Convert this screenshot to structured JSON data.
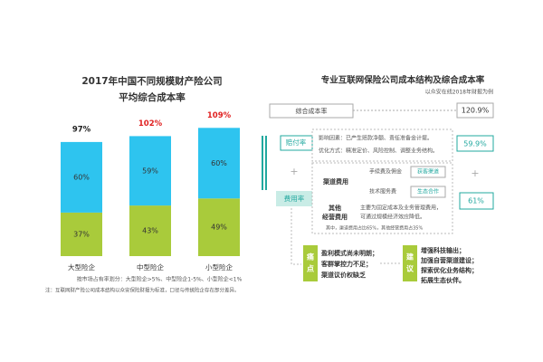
{
  "chart_data": {
    "type": "stacked_bar",
    "title": "2017年中国不同规模财产险公司",
    "subtitle": "平均综合成本率",
    "categories": [
      "大型险企",
      "中型险企",
      "小型险企"
    ],
    "series": [
      {
        "color": "#a9cb3b",
        "values": [
          37,
          43,
          49
        ],
        "value_labels": [
          "37%",
          "43%",
          "49%"
        ]
      },
      {
        "color": "#2ec4ef",
        "values": [
          60,
          59,
          60
        ],
        "value_labels": [
          "60%",
          "59%",
          "60%"
        ]
      }
    ],
    "totals": [
      97,
      102,
      109
    ],
    "total_labels": [
      "97%",
      "102%",
      "109%"
    ],
    "total_colors": [
      "#222222",
      "#e02020",
      "#e02020"
    ],
    "note": "按市场占有率划分：大型险企>5%、中型险企1-5%、小型险企<1%",
    "footnote": "注：互联网财产险公司成本结构以众安保险财报为标准，口径与传统险企存在部分差异。"
  },
  "diagram": {
    "title": "专业互联网保险公司成本结构及综合成本率",
    "subtitle": "以众安在线2018年财报为例",
    "combined": {
      "label": "综合成本率",
      "value": "120.9%"
    },
    "claims": {
      "label": "赔付率",
      "value": "59.9%",
      "factors": "影响因素：已产生赔款净额、责任准备金计提。",
      "methods": "优化方式：精准定价、风险控制、调整业务结构。"
    },
    "plus": "+",
    "expense": {
      "label": "费用率",
      "value": "61%",
      "channel": "渠道费用",
      "fee": "手续费及佣金",
      "fee_tag": "获客渠道",
      "tech": "技术服务费",
      "tech_tag": "生态合作",
      "other": [
        "其他",
        "经营费用"
      ],
      "other_desc": [
        "主要为固定成本及业务管理费用，",
        "可通过规模经济效应降低。"
      ],
      "share": "其中，渠道费用占比65%，其他经营费用占35%"
    },
    "pain": {
      "label": [
        "痛",
        "点"
      ],
      "items": [
        "盈利模式尚未明朗；",
        "客群掌控力不足；",
        "渠道议价权缺乏"
      ]
    },
    "advice": {
      "label": [
        "建",
        "议"
      ],
      "items": [
        "增强科技输出；",
        "加强自营渠道建设；",
        "探索优化业务结构；",
        "拓展生态伙伴。"
      ]
    }
  }
}
